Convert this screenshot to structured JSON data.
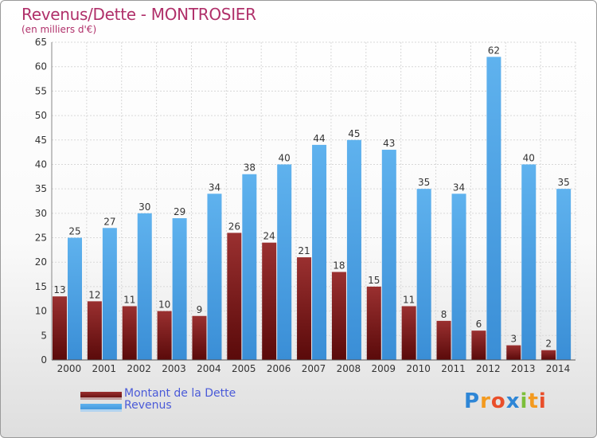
{
  "chart_data": {
    "type": "bar",
    "title": "Revenus/Dette - MONTROSIER",
    "subtitle": "(en milliers d'€)",
    "xlabel": "",
    "ylabel": "",
    "ylim": [
      0,
      65
    ],
    "yticks": [
      0,
      5,
      10,
      15,
      20,
      25,
      30,
      35,
      40,
      45,
      50,
      55,
      60,
      65
    ],
    "grid": true,
    "categories": [
      "2000",
      "2001",
      "2002",
      "2003",
      "2004",
      "2005",
      "2006",
      "2007",
      "2008",
      "2009",
      "2010",
      "2011",
      "2012",
      "2013",
      "2014"
    ],
    "series": [
      {
        "name": "Montant de la Dette",
        "color": "#7a1a1a",
        "values": [
          13,
          12,
          11,
          10,
          9,
          26,
          24,
          21,
          18,
          15,
          11,
          8,
          6,
          3,
          2
        ]
      },
      {
        "name": "Revenus",
        "color": "#4a9fe0",
        "values": [
          25,
          27,
          30,
          29,
          34,
          38,
          40,
          44,
          45,
          43,
          35,
          34,
          62,
          40,
          35
        ]
      }
    ],
    "legend": "bottom-left"
  },
  "logo": {
    "text": "Proxiti",
    "letters": [
      {
        "ch": "P",
        "color": "#2e86d6"
      },
      {
        "ch": "r",
        "color": "#f39a1f"
      },
      {
        "ch": "o",
        "color": "#e94e2a"
      },
      {
        "ch": "x",
        "color": "#2e86d6"
      },
      {
        "ch": "i",
        "color": "#7cbf3a"
      },
      {
        "ch": "t",
        "color": "#f39a1f"
      },
      {
        "ch": "i",
        "color": "#e94e2a"
      }
    ]
  }
}
